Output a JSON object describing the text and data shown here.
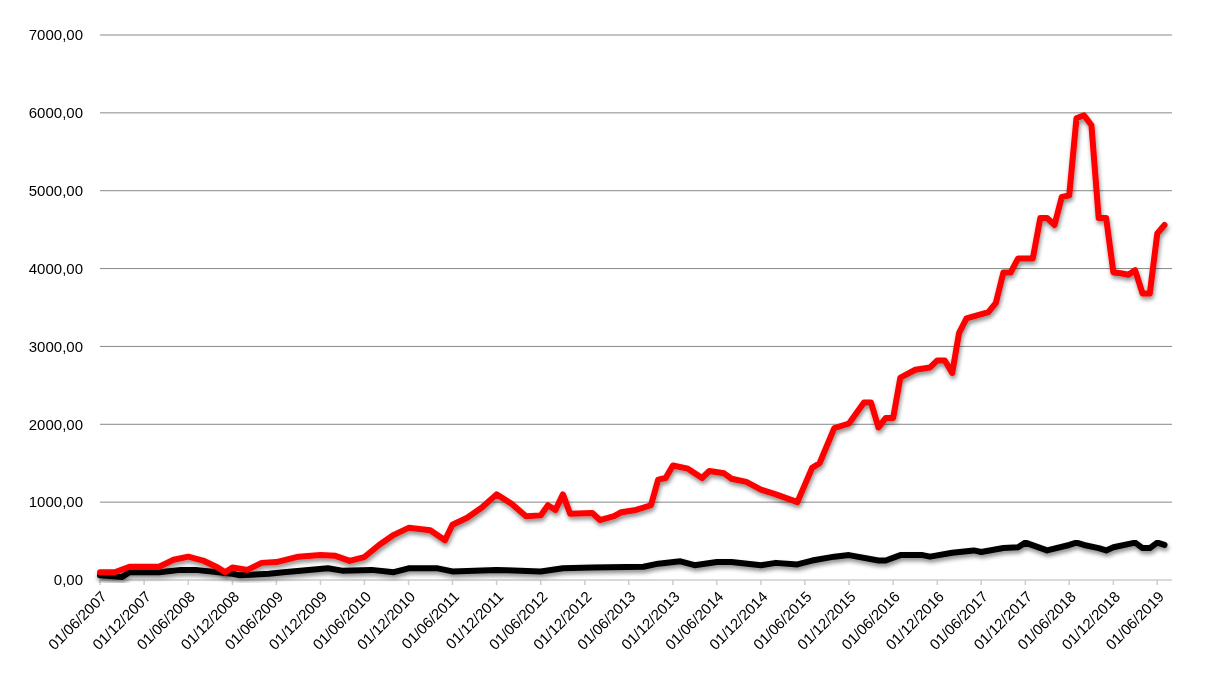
{
  "chart_data": {
    "type": "line",
    "xlim": [
      "2007-06",
      "2019-08"
    ],
    "ylim": [
      0,
      7000
    ],
    "xticks": [
      {
        "value": "2007-06",
        "label": "01/06/2007"
      },
      {
        "value": "2007-12",
        "label": "01/12/2007"
      },
      {
        "value": "2008-06",
        "label": "01/06/2008"
      },
      {
        "value": "2008-12",
        "label": "01/12/2008"
      },
      {
        "value": "2009-06",
        "label": "01/06/2009"
      },
      {
        "value": "2009-12",
        "label": "01/12/2009"
      },
      {
        "value": "2010-06",
        "label": "01/06/2010"
      },
      {
        "value": "2010-12",
        "label": "01/12/2010"
      },
      {
        "value": "2011-06",
        "label": "01/06/2011"
      },
      {
        "value": "2011-12",
        "label": "01/12/2011"
      },
      {
        "value": "2012-06",
        "label": "01/06/2012"
      },
      {
        "value": "2012-12",
        "label": "01/12/2012"
      },
      {
        "value": "2013-06",
        "label": "01/06/2013"
      },
      {
        "value": "2013-12",
        "label": "01/12/2013"
      },
      {
        "value": "2014-06",
        "label": "01/06/2014"
      },
      {
        "value": "2014-12",
        "label": "01/12/2014"
      },
      {
        "value": "2015-06",
        "label": "01/06/2015"
      },
      {
        "value": "2015-12",
        "label": "01/12/2015"
      },
      {
        "value": "2016-06",
        "label": "01/06/2016"
      },
      {
        "value": "2016-12",
        "label": "01/12/2016"
      },
      {
        "value": "2017-06",
        "label": "01/06/2017"
      },
      {
        "value": "2017-12",
        "label": "01/12/2017"
      },
      {
        "value": "2018-06",
        "label": "01/06/2018"
      },
      {
        "value": "2018-12",
        "label": "01/12/2018"
      },
      {
        "value": "2019-06",
        "label": "01/06/2019"
      }
    ],
    "yticks": [
      {
        "value": 0,
        "label": "0,00"
      },
      {
        "value": 1000,
        "label": "1000,00"
      },
      {
        "value": 2000,
        "label": "2000,00"
      },
      {
        "value": 3000,
        "label": "3000,00"
      },
      {
        "value": 4000,
        "label": "4000,00"
      },
      {
        "value": 5000,
        "label": "5000,00"
      },
      {
        "value": 6000,
        "label": "6000,00"
      },
      {
        "value": 7000,
        "label": "7000,00"
      }
    ],
    "grid": "y",
    "marker": "none",
    "line_style": "solid",
    "series": [
      {
        "color": "#000000",
        "x": [
          "2007-06",
          "2007-09",
          "2007-10",
          "2008-02",
          "2008-05",
          "2008-07",
          "2008-12",
          "2009-01",
          "2009-05",
          "2009-07",
          "2010-01",
          "2010-03",
          "2010-07",
          "2010-10",
          "2010-12",
          "2011-04",
          "2011-06",
          "2011-09",
          "2011-12",
          "2012-06",
          "2012-09",
          "2013-01",
          "2013-08",
          "2013-10",
          "2014-01",
          "2014-03",
          "2014-06",
          "2014-08",
          "2014-12",
          "2015-02",
          "2015-05",
          "2015-07",
          "2015-10",
          "2015-12",
          "2016-04",
          "2016-05",
          "2016-07",
          "2016-10",
          "2016-11",
          "2017-02",
          "2017-05",
          "2017-06",
          "2017-09",
          "2017-11",
          "2017-12",
          "2018-03",
          "2018-06",
          "2018-07",
          "2018-08",
          "2018-10",
          "2018-11",
          "2018-12",
          "2019-03",
          "2019-04",
          "2019-05",
          "2019-06",
          "2019-07"
        ],
        "values": [
          60,
          40,
          100,
          100,
          130,
          130,
          80,
          60,
          80,
          100,
          150,
          120,
          130,
          100,
          150,
          150,
          110,
          120,
          130,
          110,
          150,
          160,
          170,
          210,
          240,
          190,
          230,
          230,
          190,
          220,
          200,
          250,
          300,
          320,
          250,
          250,
          320,
          320,
          300,
          350,
          380,
          360,
          410,
          420,
          480,
          380,
          450,
          480,
          450,
          410,
          380,
          420,
          480,
          410,
          410,
          480,
          450
        ]
      },
      {
        "color": "#ff0000",
        "x": [
          "2007-06",
          "2007-08",
          "2007-10",
          "2008-02",
          "2008-04",
          "2008-06",
          "2008-08",
          "2008-10",
          "2008-11",
          "2008-12",
          "2009-02",
          "2009-04",
          "2009-06",
          "2009-09",
          "2009-12",
          "2010-02",
          "2010-04",
          "2010-06",
          "2010-08",
          "2010-10",
          "2010-12",
          "2011-03",
          "2011-05",
          "2011-06",
          "2011-08",
          "2011-10",
          "2011-12",
          "2012-02",
          "2012-04",
          "2012-06",
          "2012-07",
          "2012-08",
          "2012-09",
          "2012-10",
          "2013-01",
          "2013-02",
          "2013-04",
          "2013-05",
          "2013-07",
          "2013-09",
          "2013-10",
          "2013-11",
          "2013-12",
          "2014-02",
          "2014-04",
          "2014-05",
          "2014-07",
          "2014-08",
          "2014-10",
          "2014-12",
          "2015-02",
          "2015-05",
          "2015-07",
          "2015-08",
          "2015-10",
          "2015-12",
          "2016-02",
          "2016-03",
          "2016-04",
          "2016-05",
          "2016-06",
          "2016-07",
          "2016-09",
          "2016-11",
          "2016-12",
          "2017-01",
          "2017-02",
          "2017-03",
          "2017-04",
          "2017-07",
          "2017-08",
          "2017-09",
          "2017-10",
          "2017-11",
          "2018-01",
          "2018-02",
          "2018-03",
          "2018-04",
          "2018-05",
          "2018-06",
          "2018-07",
          "2018-08",
          "2018-09",
          "2018-10",
          "2018-11",
          "2018-12",
          "2019-01",
          "2019-02",
          "2019-03",
          "2019-04",
          "2019-05",
          "2019-06",
          "2019-07"
        ],
        "values": [
          100,
          100,
          170,
          170,
          260,
          300,
          250,
          160,
          100,
          160,
          130,
          220,
          230,
          300,
          320,
          310,
          245,
          295,
          450,
          580,
          670,
          640,
          510,
          710,
          800,
          930,
          1100,
          980,
          820,
          830,
          960,
          900,
          1100,
          850,
          860,
          770,
          820,
          870,
          900,
          960,
          1290,
          1310,
          1470,
          1430,
          1310,
          1400,
          1370,
          1300,
          1260,
          1160,
          1100,
          1000,
          1440,
          1500,
          1950,
          2010,
          2280,
          2280,
          1960,
          2080,
          2080,
          2600,
          2700,
          2730,
          2820,
          2820,
          2660,
          3170,
          3360,
          3440,
          3560,
          3950,
          3950,
          4130,
          4130,
          4650,
          4650,
          4560,
          4920,
          4940,
          5930,
          5970,
          5840,
          4650,
          4650,
          3950,
          3940,
          3920,
          3980,
          3680,
          3680,
          4450,
          4560
        ]
      }
    ]
  }
}
